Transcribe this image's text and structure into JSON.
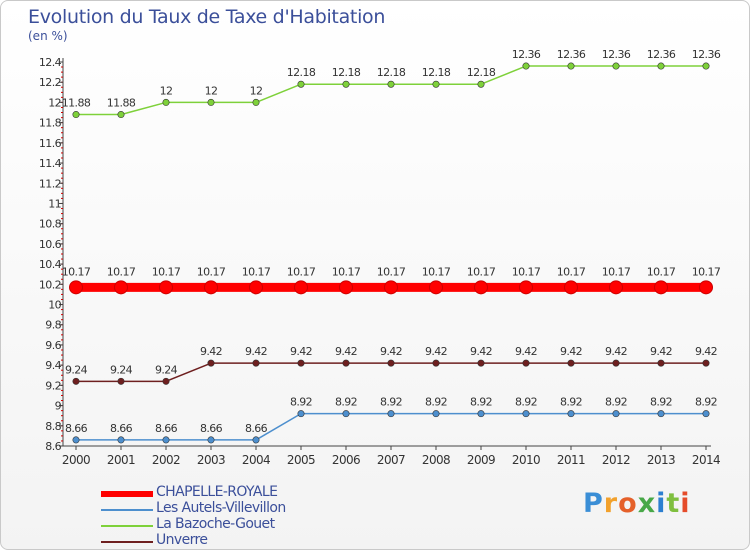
{
  "title": "Evolution du Taux de Taxe d'Habitation",
  "unit": "(en %)",
  "brand": {
    "letters": [
      "P",
      "r",
      "o",
      "x",
      "i",
      "t",
      "i"
    ],
    "colors": [
      "#3a8ed6",
      "#f2a12c",
      "#e5602a",
      "#48a848",
      "#2c7fd0",
      "#7fbf3f",
      "#e54b2a"
    ]
  },
  "chart_data": {
    "type": "line",
    "title": "Evolution du Taux de Taxe d'Habitation",
    "ylabel": "(en %)",
    "xlabel": "",
    "x": [
      "2000",
      "2001",
      "2002",
      "2003",
      "2004",
      "2005",
      "2006",
      "2007",
      "2008",
      "2009",
      "2010",
      "2011",
      "2012",
      "2013",
      "2014"
    ],
    "ylim": [
      8.6,
      12.4
    ],
    "yticks": [
      "8.6",
      "8.8",
      "9",
      "9.2",
      "9.4",
      "9.6",
      "9.8",
      "10",
      "10.2",
      "10.4",
      "10.6",
      "10.8",
      "11",
      "11.2",
      "11.4",
      "11.6",
      "11.8",
      "12",
      "12.2",
      "12.4"
    ],
    "grid": false,
    "legend_position": "bottom-left",
    "series": [
      {
        "name": "CHAPELLE-ROYALE",
        "color": "#ff0000",
        "thick": true,
        "values": [
          10.17,
          10.17,
          10.17,
          10.17,
          10.17,
          10.17,
          10.17,
          10.17,
          10.17,
          10.17,
          10.17,
          10.17,
          10.17,
          10.17,
          10.17
        ],
        "labels": [
          "10.17",
          "10.17",
          "10.17",
          "10.17",
          "10.17",
          "10.17",
          "10.17",
          "10.17",
          "10.17",
          "10.17",
          "10.17",
          "10.17",
          "10.17",
          "10.17",
          "10.17"
        ]
      },
      {
        "name": "Les Autels-Villevillon",
        "color": "#4d8fce",
        "thick": false,
        "values": [
          8.66,
          8.66,
          8.66,
          8.66,
          8.66,
          8.92,
          8.92,
          8.92,
          8.92,
          8.92,
          8.92,
          8.92,
          8.92,
          8.92,
          8.92
        ],
        "labels": [
          "8.66",
          "8.66",
          "8.66",
          "8.66",
          "8.66",
          "8.92",
          "8.92",
          "8.92",
          "8.92",
          "8.92",
          "8.92",
          "8.92",
          "8.92",
          "8.92",
          "8.92"
        ]
      },
      {
        "name": "La Bazoche-Gouet",
        "color": "#7ed13a",
        "thick": false,
        "values": [
          11.88,
          11.88,
          12,
          12,
          12,
          12.18,
          12.18,
          12.18,
          12.18,
          12.18,
          12.36,
          12.36,
          12.36,
          12.36,
          12.36
        ],
        "labels": [
          "11.88",
          "11.88",
          "12",
          "12",
          "12",
          "12.18",
          "12.18",
          "12.18",
          "12.18",
          "12.18",
          "12.36",
          "12.36",
          "12.36",
          "12.36",
          "12.36"
        ]
      },
      {
        "name": "Unverre",
        "color": "#6e1f1f",
        "thick": false,
        "values": [
          9.24,
          9.24,
          9.24,
          9.42,
          9.42,
          9.42,
          9.42,
          9.42,
          9.42,
          9.42,
          9.42,
          9.42,
          9.42,
          9.42,
          9.42
        ],
        "labels": [
          "9.24",
          "9.24",
          "9.24",
          "9.42",
          "9.42",
          "9.42",
          "9.42",
          "9.42",
          "9.42",
          "9.42",
          "9.42",
          "9.42",
          "9.42",
          "9.42",
          "9.42"
        ]
      }
    ]
  }
}
